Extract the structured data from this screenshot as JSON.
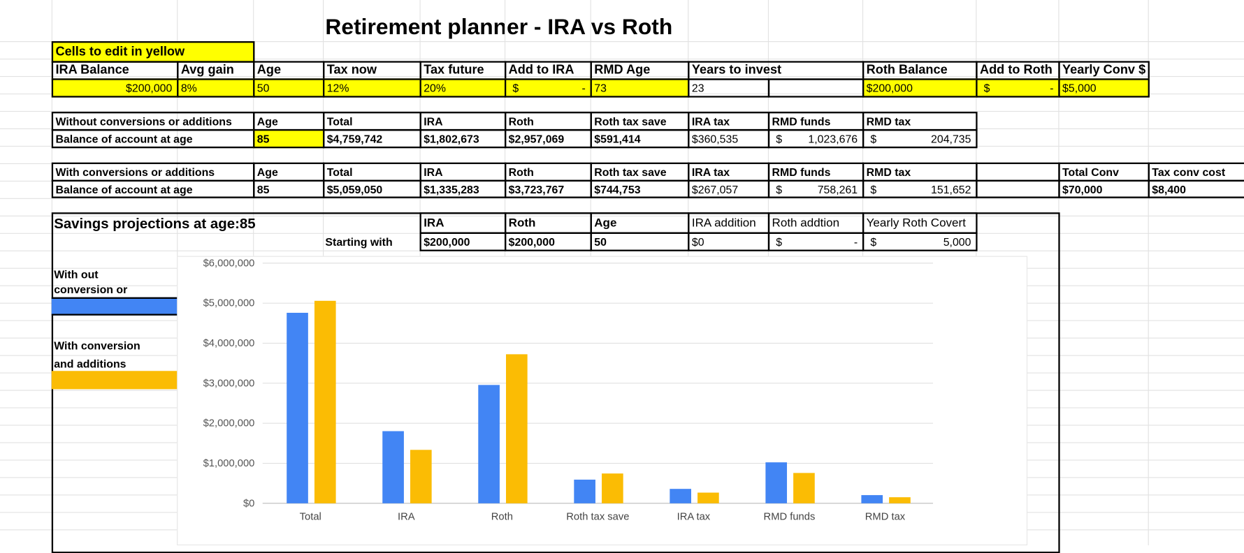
{
  "title": "Retirement planner  - IRA vs Roth",
  "edit_note": "Cells to edit in yellow",
  "inputs": {
    "headers": [
      "IRA Balance",
      "Avg gain",
      "Age",
      "Tax now",
      "Tax future",
      "Add to IRA",
      "RMD Age",
      "Years to invest",
      "Roth Balance",
      "Add to Roth",
      "Yearly Conv $"
    ],
    "values": [
      {
        "symbol": "$",
        "amount": "200,000"
      },
      "8%",
      "50",
      "12%",
      "20%",
      {
        "symbol": "$",
        "amount": "-"
      },
      "73",
      "23",
      "$200,000",
      {
        "symbol": "$",
        "amount": "-"
      },
      "$5,000"
    ]
  },
  "without": {
    "headers": [
      "Without conversions or additions",
      "Age",
      "Total",
      "IRA",
      "Roth",
      "Roth tax save",
      "IRA tax",
      "RMD funds",
      "RMD tax"
    ],
    "values": [
      "Balance of account  at age",
      "85",
      "$4,759,742",
      "$1,802,673",
      "$2,957,069",
      "$591,414",
      "$360,535",
      {
        "symbol": "$",
        "amount": "1,023,676"
      },
      {
        "symbol": "$",
        "amount": "204,735"
      }
    ]
  },
  "with": {
    "headers": [
      "With conversions or additions",
      "Age",
      "Total",
      "IRA",
      "Roth",
      "Roth tax save",
      "IRA tax",
      "RMD funds",
      "RMD tax",
      "Total Conv",
      "Tax conv cost"
    ],
    "values": [
      "Balance of account  at age",
      "85",
      "$5,059,050",
      "$1,335,283",
      "$3,723,767",
      "$744,753",
      "$267,057",
      {
        "symbol": "$",
        "amount": "758,261"
      },
      {
        "symbol": "$",
        "amount": "151,652"
      },
      "$70,000",
      "$8,400"
    ]
  },
  "projections": {
    "title": "Savings projections at age:85",
    "starting_label": "Starting with",
    "headers": [
      "IRA",
      "Roth",
      "Age",
      "IRA addition",
      "Roth addtion",
      "Yearly Roth Covert"
    ],
    "values": [
      "$200,000",
      "$200,000",
      "50",
      "$0",
      {
        "symbol": "$",
        "amount": "-"
      },
      {
        "symbol": "$",
        "amount": "5,000"
      }
    ]
  },
  "chart_data": {
    "type": "bar",
    "categories": [
      "Total",
      "IRA",
      "Roth",
      "Roth tax save",
      "IRA tax",
      "RMD funds",
      "RMD tax"
    ],
    "series": [
      {
        "name": "With out conversion or addtions",
        "color": "#4285f4",
        "values": [
          4759742,
          1802673,
          2957069,
          591414,
          360535,
          1023676,
          204735
        ]
      },
      {
        "name": "With conversion and additions",
        "color": "#fbbc04",
        "values": [
          5059050,
          1335283,
          3723767,
          744753,
          267057,
          758261,
          151652
        ]
      }
    ],
    "ylim": [
      0,
      6000000
    ],
    "yticks": [
      {
        "value": 0,
        "label": "$0"
      },
      {
        "value": 1000000,
        "label": "$1,000,000"
      },
      {
        "value": 2000000,
        "label": "$2,000,000"
      },
      {
        "value": 3000000,
        "label": "$3,000,000"
      },
      {
        "value": 4000000,
        "label": "$4,000,000"
      },
      {
        "value": 5000000,
        "label": "$5,000,000"
      },
      {
        "value": 6000000,
        "label": "$6,000,000"
      }
    ],
    "grid": true
  }
}
